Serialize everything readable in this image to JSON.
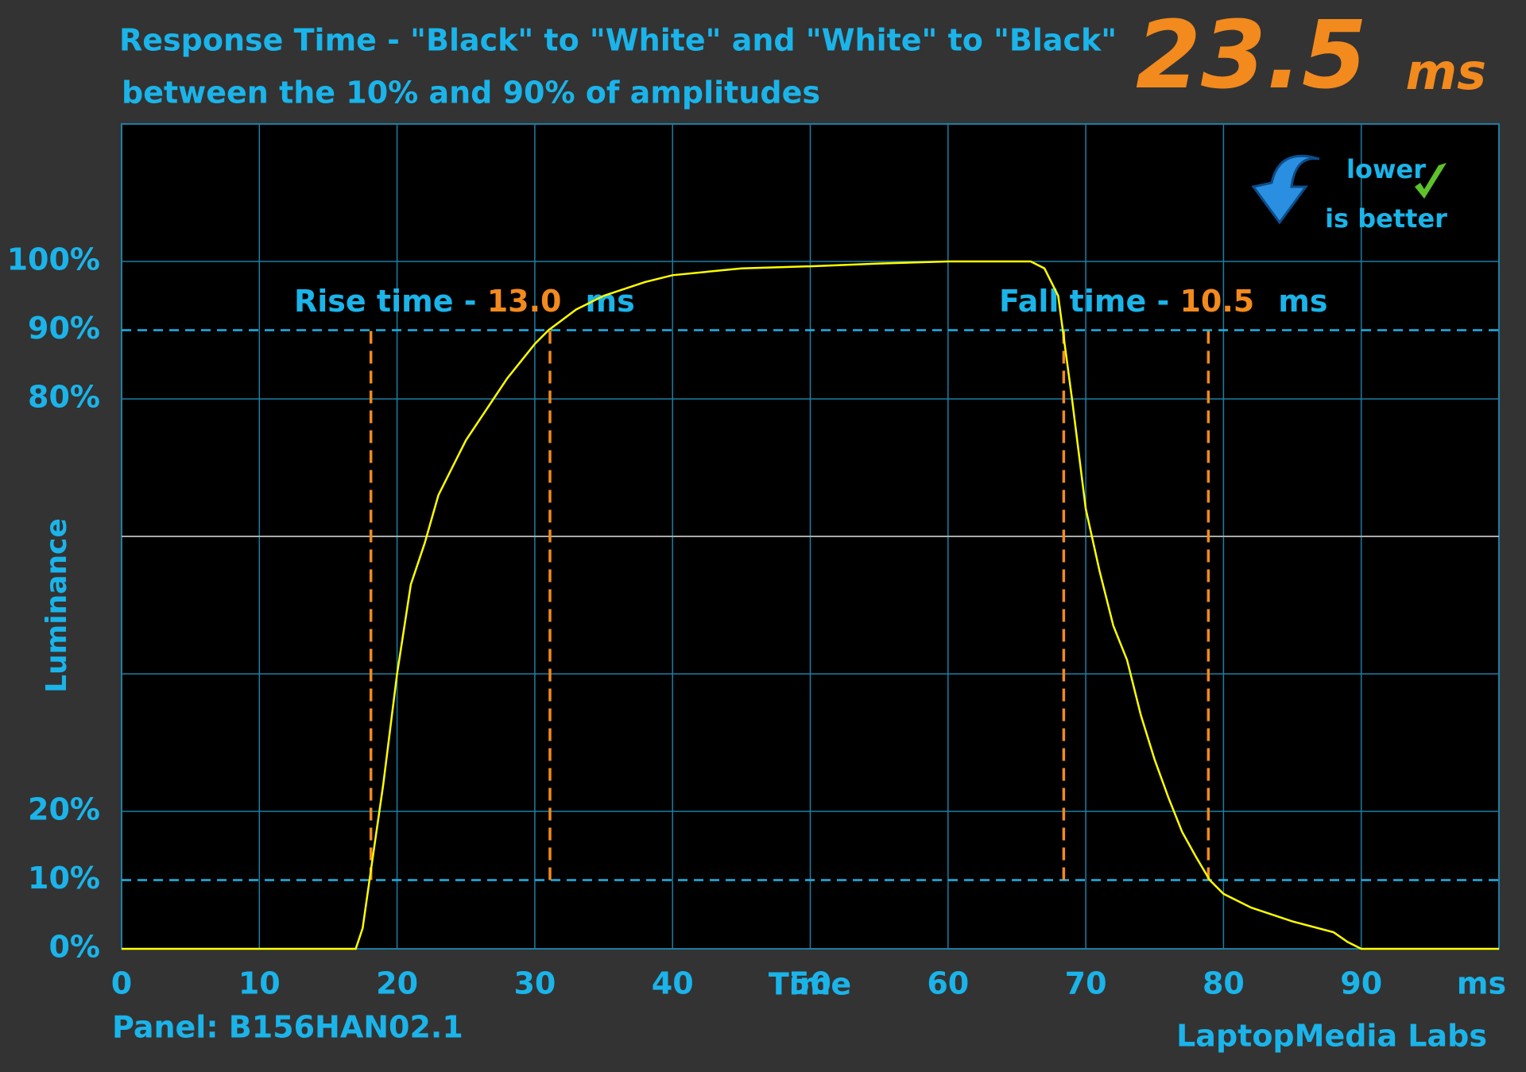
{
  "chart_data": {
    "type": "line",
    "title": "Response Time - \"Black\" to \"White\" and \"White\" to \"Black\"",
    "subtitle": "between the 10% and 90% of amplitudes",
    "headline": {
      "value": "23.5",
      "unit": "ms"
    },
    "badge": {
      "line1": "lower",
      "line2": "is better"
    },
    "y_label": "Luminance",
    "x_label": "Time",
    "x_unit": "ms",
    "footer_left": "Panel: B156HAN02.1",
    "footer_right": "LaptopMedia Labs",
    "annotations": [
      {
        "label": "Rise time - ",
        "value": "13.0",
        "unit": "ms"
      },
      {
        "label": "Fall time - ",
        "value": "10.5",
        "unit": "ms"
      }
    ],
    "x": [
      0,
      17,
      17.5,
      18,
      19,
      20,
      21,
      22,
      23,
      24,
      25,
      26,
      28,
      30,
      31,
      33,
      35,
      38,
      40,
      45,
      50,
      55,
      60,
      66,
      67,
      68,
      69,
      70,
      71,
      72,
      73,
      74,
      75,
      76,
      77,
      78,
      79,
      80,
      82,
      85,
      88,
      89,
      90,
      100
    ],
    "series": [
      {
        "color": "#ffff00",
        "values": [
          0,
          0,
          3,
          10,
          24,
          40,
          53,
          59,
          66,
          70,
          74,
          77,
          83,
          88,
          90,
          93,
          95,
          97,
          98,
          99,
          99.3,
          99.7,
          100,
          100,
          99,
          95,
          80,
          64,
          55,
          47,
          42,
          34,
          27.5,
          22,
          17,
          13.4,
          10,
          8,
          6,
          4,
          2.4,
          1,
          0,
          0
        ]
      }
    ],
    "markers": [
      18.1,
      31.1,
      68.4,
      78.9
    ],
    "threshold_lines": [
      10,
      90
    ],
    "xlim": [
      0,
      100
    ],
    "ylim": [
      0,
      120
    ],
    "xticks": [
      0,
      10,
      20,
      30,
      40,
      50,
      60,
      70,
      80,
      90
    ],
    "yticks": [
      {
        "value": 0,
        "label": "0%"
      },
      {
        "value": 10,
        "label": "10%"
      },
      {
        "value": 20,
        "label": "20%"
      },
      {
        "value": 80,
        "label": "80%"
      },
      {
        "value": 90,
        "label": "90%"
      },
      {
        "value": 100,
        "label": "100%"
      }
    ],
    "ygrid": [
      0,
      20,
      40,
      60,
      80,
      100,
      120
    ],
    "grid": true
  }
}
